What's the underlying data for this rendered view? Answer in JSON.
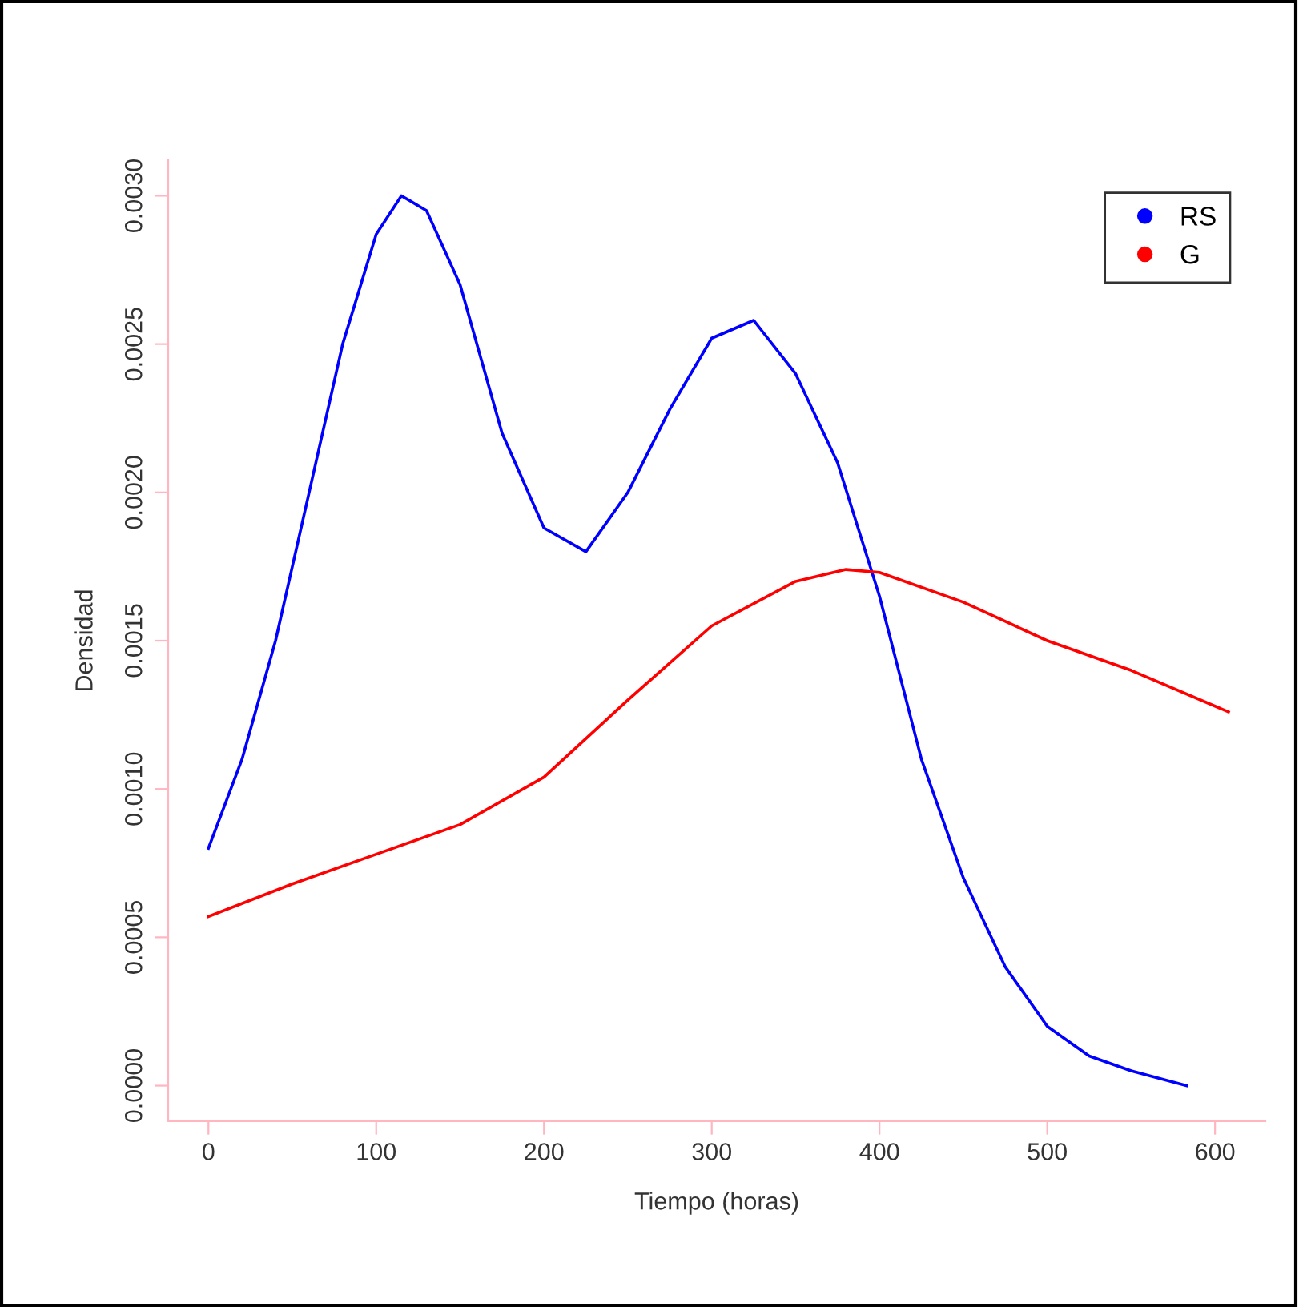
{
  "chart_data": {
    "type": "line",
    "xlabel": "Tiempo (horas)",
    "ylabel": "Densidad",
    "xlim": [
      -24,
      630
    ],
    "ylim": [
      -0.00012,
      0.00312
    ],
    "xticks": [
      0,
      100,
      200,
      300,
      400,
      500,
      600
    ],
    "yticks": [
      {
        "value": 0,
        "label": "0.0000"
      },
      {
        "value": 0.0005,
        "label": "0.0005"
      },
      {
        "value": 0.001,
        "label": "0.0010"
      },
      {
        "value": 0.0015,
        "label": "0.0015"
      },
      {
        "value": 0.002,
        "label": "0.0020"
      },
      {
        "value": 0.0025,
        "label": "0.0025"
      },
      {
        "value": 0.003,
        "label": "0.0030"
      }
    ],
    "grid": false,
    "legend": "top right",
    "marker": "none",
    "line_style": "solid",
    "series": [
      {
        "name": "RS",
        "color": "#0000ff",
        "x": [
          0,
          20,
          40,
          60,
          80,
          100,
          115,
          130,
          150,
          175,
          200,
          225,
          250,
          275,
          300,
          325,
          350,
          375,
          400,
          425,
          450,
          475,
          500,
          525,
          550,
          583
        ],
        "values": [
          0.0008,
          0.0011,
          0.0015,
          0.002,
          0.0025,
          0.00287,
          0.003,
          0.00295,
          0.0027,
          0.0022,
          0.00188,
          0.0018,
          0.002,
          0.00228,
          0.00252,
          0.00258,
          0.0024,
          0.0021,
          0.00165,
          0.0011,
          0.0007,
          0.0004,
          0.0002,
          0.0001,
          5e-05,
          0.0
        ]
      },
      {
        "name": "G",
        "color": "#ff0000",
        "x": [
          0,
          50,
          100,
          150,
          200,
          250,
          300,
          350,
          380,
          400,
          450,
          500,
          550,
          608
        ],
        "values": [
          0.00057,
          0.00068,
          0.00078,
          0.00088,
          0.00104,
          0.0013,
          0.00155,
          0.0017,
          0.00174,
          0.00173,
          0.00163,
          0.0015,
          0.0014,
          0.00126
        ]
      }
    ]
  }
}
